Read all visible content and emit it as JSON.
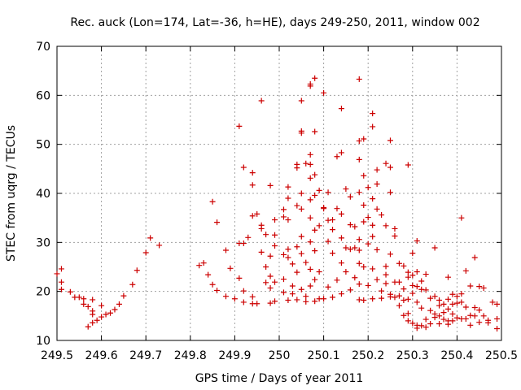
{
  "chart_data": {
    "type": "scatter",
    "title": "Rec. auck (Lon=174, Lat=-36, h=HE), days 249-250, 2011, window 002",
    "xlabel": "GPS time / Days of year 2011",
    "ylabel": "STEC from uqrg / TECUs",
    "xlim": [
      249.5,
      250.5
    ],
    "ylim": [
      10,
      70
    ],
    "xticks": [
      "249.5",
      "249.6",
      "249.7",
      "249.8",
      "249.9",
      "250",
      "250.1",
      "250.2",
      "250.3",
      "250.4",
      "250.5"
    ],
    "yticks": [
      "10",
      "20",
      "30",
      "40",
      "50",
      "60",
      "70"
    ],
    "grid": true,
    "marker": "+",
    "color": "#cc0000",
    "series": [
      {
        "points": [
          [
            249.5,
            23.6
          ],
          [
            249.51,
            24.6
          ],
          [
            249.51,
            21.9
          ],
          [
            249.51,
            20.4
          ],
          [
            249.53,
            19.9
          ],
          [
            249.54,
            18.8
          ],
          [
            249.55,
            18.8
          ],
          [
            249.56,
            18.5
          ],
          [
            249.56,
            17.4
          ],
          [
            249.57,
            16.9
          ],
          [
            249.58,
            18.3
          ],
          [
            249.58,
            16.0
          ],
          [
            249.58,
            15.3
          ],
          [
            249.57,
            12.8
          ],
          [
            249.58,
            13.6
          ],
          [
            249.59,
            14.1
          ],
          [
            249.6,
            14.8
          ],
          [
            249.6,
            17.1
          ],
          [
            249.61,
            15.3
          ],
          [
            249.62,
            15.6
          ],
          [
            249.63,
            16.3
          ],
          [
            249.64,
            17.4
          ],
          [
            249.65,
            19.1
          ],
          [
            249.67,
            21.4
          ],
          [
            249.68,
            24.3
          ],
          [
            249.7,
            27.9
          ],
          [
            249.71,
            30.9
          ],
          [
            249.73,
            29.4
          ],
          [
            249.82,
            25.3
          ],
          [
            249.83,
            25.8
          ],
          [
            249.84,
            23.4
          ],
          [
            249.85,
            21.4
          ],
          [
            249.85,
            38.3
          ],
          [
            249.86,
            20.2
          ],
          [
            249.86,
            34.1
          ],
          [
            249.88,
            28.4
          ],
          [
            249.88,
            19.0
          ],
          [
            249.89,
            24.7
          ],
          [
            249.9,
            18.5
          ],
          [
            249.91,
            53.7
          ],
          [
            249.91,
            29.8
          ],
          [
            249.91,
            22.7
          ],
          [
            249.92,
            17.8
          ],
          [
            249.92,
            20.1
          ],
          [
            249.92,
            29.8
          ],
          [
            249.92,
            45.3
          ],
          [
            249.93,
            31.0
          ],
          [
            249.94,
            35.4
          ],
          [
            249.94,
            44.2
          ],
          [
            249.94,
            41.7
          ],
          [
            249.94,
            18.9
          ],
          [
            249.94,
            17.5
          ],
          [
            249.95,
            35.8
          ],
          [
            249.95,
            17.5
          ],
          [
            249.96,
            58.9
          ],
          [
            249.96,
            28.0
          ],
          [
            249.96,
            32.8
          ],
          [
            249.96,
            33.5
          ],
          [
            249.97,
            31.6
          ],
          [
            249.97,
            25.0
          ],
          [
            249.97,
            21.8
          ],
          [
            249.98,
            41.6
          ],
          [
            249.98,
            27.2
          ],
          [
            249.98,
            23.1
          ],
          [
            249.98,
            20.7
          ],
          [
            249.98,
            17.6
          ],
          [
            249.99,
            31.5
          ],
          [
            249.99,
            29.3
          ],
          [
            249.99,
            21.9
          ],
          [
            249.99,
            18.0
          ],
          [
            249.99,
            34.6
          ],
          [
            250.01,
            36.7
          ],
          [
            250.01,
            35.2
          ],
          [
            250.01,
            27.5
          ],
          [
            250.01,
            22.5
          ],
          [
            250.01,
            19.8
          ],
          [
            250.02,
            41.3
          ],
          [
            250.02,
            39.0
          ],
          [
            250.02,
            34.6
          ],
          [
            250.02,
            28.6
          ],
          [
            250.02,
            26.9
          ],
          [
            250.02,
            18.2
          ],
          [
            250.03,
            25.6
          ],
          [
            250.03,
            21.1
          ],
          [
            250.03,
            19.5
          ],
          [
            250.04,
            45.9
          ],
          [
            250.04,
            45.2
          ],
          [
            250.04,
            37.5
          ],
          [
            250.04,
            29.1
          ],
          [
            250.04,
            23.9
          ],
          [
            250.04,
            18.3
          ],
          [
            250.05,
            52.7
          ],
          [
            250.05,
            52.3
          ],
          [
            250.05,
            58.9
          ],
          [
            250.05,
            40.0
          ],
          [
            250.05,
            36.8
          ],
          [
            250.05,
            31.2
          ],
          [
            250.05,
            27.7
          ],
          [
            250.05,
            20.4
          ],
          [
            250.06,
            46.1
          ],
          [
            250.06,
            25.9
          ],
          [
            250.06,
            19.0
          ],
          [
            250.06,
            17.9
          ],
          [
            250.07,
            61.9
          ],
          [
            250.07,
            62.3
          ],
          [
            250.07,
            47.9
          ],
          [
            250.07,
            45.9
          ],
          [
            250.07,
            43.1
          ],
          [
            250.07,
            38.7
          ],
          [
            250.07,
            35.0
          ],
          [
            250.07,
            30.1
          ],
          [
            250.07,
            24.5
          ],
          [
            250.07,
            21.1
          ],
          [
            250.08,
            63.5
          ],
          [
            250.08,
            52.6
          ],
          [
            250.08,
            43.8
          ],
          [
            250.08,
            39.6
          ],
          [
            250.08,
            32.5
          ],
          [
            250.08,
            28.3
          ],
          [
            250.08,
            22.4
          ],
          [
            250.08,
            18.0
          ],
          [
            250.09,
            40.6
          ],
          [
            250.09,
            33.4
          ],
          [
            250.09,
            24.0
          ],
          [
            250.09,
            18.5
          ],
          [
            250.1,
            60.5
          ],
          [
            250.1,
            37.1
          ],
          [
            250.1,
            36.9
          ],
          [
            250.1,
            18.5
          ],
          [
            250.11,
            40.2
          ],
          [
            250.11,
            34.5
          ],
          [
            250.11,
            30.2
          ],
          [
            250.11,
            20.9
          ],
          [
            250.12,
            34.6
          ],
          [
            250.12,
            32.6
          ],
          [
            250.12,
            27.8
          ],
          [
            250.12,
            18.8
          ],
          [
            250.13,
            47.5
          ],
          [
            250.13,
            36.9
          ],
          [
            250.13,
            22.3
          ],
          [
            250.14,
            57.3
          ],
          [
            250.14,
            48.3
          ],
          [
            250.14,
            35.8
          ],
          [
            250.14,
            30.9
          ],
          [
            250.14,
            25.8
          ],
          [
            250.14,
            19.5
          ],
          [
            250.15,
            40.9
          ],
          [
            250.15,
            28.9
          ],
          [
            250.15,
            24.0
          ],
          [
            250.16,
            39.3
          ],
          [
            250.16,
            33.6
          ],
          [
            250.16,
            28.6
          ],
          [
            250.16,
            20.3
          ],
          [
            250.17,
            33.2
          ],
          [
            250.17,
            28.9
          ],
          [
            250.17,
            22.8
          ],
          [
            250.18,
            63.3
          ],
          [
            250.18,
            50.7
          ],
          [
            250.18,
            46.9
          ],
          [
            250.18,
            40.2
          ],
          [
            250.18,
            30.6
          ],
          [
            250.18,
            28.4
          ],
          [
            250.18,
            25.7
          ],
          [
            250.18,
            21.5
          ],
          [
            250.18,
            18.3
          ],
          [
            250.19,
            51.1
          ],
          [
            250.19,
            43.6
          ],
          [
            250.19,
            37.6
          ],
          [
            250.19,
            34.2
          ],
          [
            250.19,
            25.0
          ],
          [
            250.19,
            18.2
          ],
          [
            250.2,
            41.2
          ],
          [
            250.2,
            35.1
          ],
          [
            250.2,
            29.7
          ],
          [
            250.2,
            21.2
          ],
          [
            250.21,
            56.3
          ],
          [
            250.21,
            53.6
          ],
          [
            250.21,
            38.9
          ],
          [
            250.21,
            33.5
          ],
          [
            250.21,
            31.2
          ],
          [
            250.21,
            24.6
          ],
          [
            250.21,
            18.5
          ],
          [
            250.22,
            44.8
          ],
          [
            250.22,
            41.9
          ],
          [
            250.22,
            36.8
          ],
          [
            250.22,
            28.5
          ],
          [
            250.22,
            22.4
          ],
          [
            250.23,
            35.6
          ],
          [
            250.23,
            20.1
          ],
          [
            250.23,
            18.6
          ],
          [
            250.24,
            46.1
          ],
          [
            250.24,
            33.4
          ],
          [
            250.24,
            25.1
          ],
          [
            250.24,
            23.4
          ],
          [
            250.24,
            21.6
          ],
          [
            250.25,
            50.8
          ],
          [
            250.25,
            45.3
          ],
          [
            250.25,
            40.2
          ],
          [
            250.25,
            27.6
          ],
          [
            250.25,
            19.4
          ],
          [
            250.25,
            18.9
          ],
          [
            250.26,
            32.8
          ],
          [
            250.26,
            31.3
          ],
          [
            250.26,
            21.9
          ],
          [
            250.26,
            18.8
          ],
          [
            250.27,
            25.7
          ],
          [
            250.27,
            21.9
          ],
          [
            250.27,
            19.1
          ],
          [
            250.27,
            17.1
          ],
          [
            250.28,
            25.2
          ],
          [
            250.28,
            20.5
          ],
          [
            250.28,
            18.2
          ],
          [
            250.28,
            15.1
          ],
          [
            250.29,
            45.8
          ],
          [
            250.29,
            23.9
          ],
          [
            250.29,
            22.9
          ],
          [
            250.29,
            18.4
          ],
          [
            250.29,
            15.5
          ],
          [
            250.29,
            14.0
          ],
          [
            250.3,
            27.8
          ],
          [
            250.3,
            23.3
          ],
          [
            250.3,
            21.2
          ],
          [
            250.3,
            19.6
          ],
          [
            250.3,
            13.5
          ],
          [
            250.31,
            30.3
          ],
          [
            250.31,
            24.0
          ],
          [
            250.31,
            21.0
          ],
          [
            250.31,
            17.8
          ],
          [
            250.31,
            13.1
          ],
          [
            250.31,
            12.5
          ],
          [
            250.32,
            22.1
          ],
          [
            250.32,
            20.4
          ],
          [
            250.32,
            16.6
          ],
          [
            250.32,
            13.0
          ],
          [
            250.33,
            23.5
          ],
          [
            250.33,
            20.3
          ],
          [
            250.33,
            14.3
          ],
          [
            250.33,
            12.7
          ],
          [
            250.34,
            18.6
          ],
          [
            250.34,
            16.1
          ],
          [
            250.34,
            13.4
          ],
          [
            250.35,
            28.9
          ],
          [
            250.35,
            19.0
          ],
          [
            250.35,
            15.4
          ],
          [
            250.35,
            14.7
          ],
          [
            250.36,
            18.2
          ],
          [
            250.36,
            17.1
          ],
          [
            250.36,
            15.0
          ],
          [
            250.36,
            13.4
          ],
          [
            250.37,
            17.4
          ],
          [
            250.37,
            15.7
          ],
          [
            250.37,
            14.3
          ],
          [
            250.38,
            22.9
          ],
          [
            250.38,
            18.4
          ],
          [
            250.38,
            16.4
          ],
          [
            250.38,
            14.0
          ],
          [
            250.38,
            13.3
          ],
          [
            250.39,
            19.4
          ],
          [
            250.39,
            17.4
          ],
          [
            250.39,
            15.4
          ],
          [
            250.39,
            14.0
          ],
          [
            250.4,
            19.0
          ],
          [
            250.4,
            17.6
          ],
          [
            250.4,
            14.6
          ],
          [
            250.41,
            35.0
          ],
          [
            250.41,
            19.5
          ],
          [
            250.41,
            17.8
          ],
          [
            250.41,
            14.4
          ],
          [
            250.42,
            24.2
          ],
          [
            250.42,
            16.8
          ],
          [
            250.42,
            14.4
          ],
          [
            250.43,
            21.1
          ],
          [
            250.43,
            15.1
          ],
          [
            250.43,
            13.1
          ],
          [
            250.44,
            26.9
          ],
          [
            250.44,
            16.7
          ],
          [
            250.44,
            15.0
          ],
          [
            250.45,
            21.0
          ],
          [
            250.45,
            16.2
          ],
          [
            250.45,
            13.7
          ],
          [
            250.46,
            20.7
          ],
          [
            250.46,
            15.0
          ],
          [
            250.47,
            14.1
          ],
          [
            250.47,
            13.6
          ],
          [
            250.48,
            17.8
          ],
          [
            250.49,
            17.4
          ],
          [
            250.49,
            12.4
          ],
          [
            250.49,
            14.4
          ]
        ]
      }
    ]
  }
}
